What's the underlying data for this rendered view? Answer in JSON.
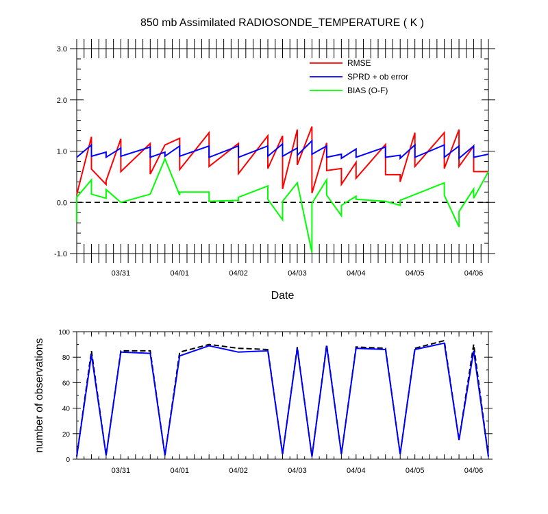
{
  "title": "850 mb Assimilated RADIOSONDE_TEMPERATURE ( K )",
  "chart_data": [
    {
      "type": "line",
      "xlabel": "Date",
      "ylabel": "",
      "xlim": [
        0,
        28
      ],
      "ylim": [
        -1.0,
        3.0
      ],
      "yticks": [
        {
          "v": -1.0,
          "label": "-1.0"
        },
        {
          "v": 0.0,
          "label": "0.0"
        },
        {
          "v": 1.0,
          "label": "1.0"
        },
        {
          "v": 2.0,
          "label": "2.0"
        },
        {
          "v": 3.0,
          "label": "3.0"
        }
      ],
      "date_ticks": [
        {
          "x": 3,
          "label": "03/31"
        },
        {
          "x": 7,
          "label": "04/01"
        },
        {
          "x": 11,
          "label": "04/02"
        },
        {
          "x": 15,
          "label": "04/03"
        },
        {
          "x": 19,
          "label": "04/04"
        },
        {
          "x": 23,
          "label": "04/05"
        },
        {
          "x": 27,
          "label": "04/06"
        }
      ],
      "zero_line": true,
      "legend": "top-right",
      "series": [
        {
          "name": "RMSE",
          "color": "#ff0000",
          "points": [
            [
              0,
              0.15
            ],
            [
              1,
              1.28
            ],
            [
              1,
              0.65
            ],
            [
              2,
              0.35
            ],
            [
              2,
              0.42
            ],
            [
              3,
              1.24
            ],
            [
              3,
              0.6
            ],
            [
              5,
              1.15
            ],
            [
              5,
              0.55
            ],
            [
              6,
              1.12
            ],
            [
              7,
              1.25
            ],
            [
              7,
              0.64
            ],
            [
              9,
              1.36
            ],
            [
              9,
              0.7
            ],
            [
              11,
              1.15
            ],
            [
              11,
              0.56
            ],
            [
              13,
              1.3
            ],
            [
              13,
              0.66
            ],
            [
              14,
              1.3
            ],
            [
              14,
              0.26
            ],
            [
              15,
              1.42
            ],
            [
              15,
              0.73
            ],
            [
              16,
              1.48
            ],
            [
              16,
              0.18
            ],
            [
              17,
              1.16
            ],
            [
              17,
              0.62
            ],
            [
              18,
              0.66
            ],
            [
              18,
              0.35
            ],
            [
              19,
              0.78
            ],
            [
              19,
              0.47
            ],
            [
              21,
              1.13
            ],
            [
              21,
              0.54
            ],
            [
              22,
              0.54
            ],
            [
              22,
              0.4
            ],
            [
              23,
              1.36
            ],
            [
              23,
              0.7
            ],
            [
              25,
              1.36
            ],
            [
              25,
              0.66
            ],
            [
              26,
              1.42
            ],
            [
              26,
              0.7
            ],
            [
              27,
              1.1
            ],
            [
              27,
              0.6
            ],
            [
              28,
              0.6
            ]
          ]
        },
        {
          "name": "SPRD + ob error",
          "color": "#0000ff",
          "points": [
            [
              0,
              0.88
            ],
            [
              1,
              1.12
            ],
            [
              1,
              0.9
            ],
            [
              2,
              0.98
            ],
            [
              2,
              0.88
            ],
            [
              3,
              1.06
            ],
            [
              3,
              0.9
            ],
            [
              5,
              1.08
            ],
            [
              5,
              0.88
            ],
            [
              6,
              0.98
            ],
            [
              6,
              0.9
            ],
            [
              7,
              1.1
            ],
            [
              7,
              0.9
            ],
            [
              9,
              1.1
            ],
            [
              9,
              0.88
            ],
            [
              11,
              1.1
            ],
            [
              11,
              0.88
            ],
            [
              13,
              1.1
            ],
            [
              13,
              0.9
            ],
            [
              14,
              1.14
            ],
            [
              14,
              0.9
            ],
            [
              15,
              1.06
            ],
            [
              15,
              0.92
            ],
            [
              16,
              1.2
            ],
            [
              16,
              0.94
            ],
            [
              17,
              1.1
            ],
            [
              17,
              0.88
            ],
            [
              18,
              0.94
            ],
            [
              18,
              0.86
            ],
            [
              19,
              1.04
            ],
            [
              19,
              0.88
            ],
            [
              21,
              1.08
            ],
            [
              21,
              0.88
            ],
            [
              22,
              0.92
            ],
            [
              22,
              0.86
            ],
            [
              23,
              1.12
            ],
            [
              23,
              0.88
            ],
            [
              25,
              1.12
            ],
            [
              25,
              0.88
            ],
            [
              26,
              1.1
            ],
            [
              26,
              0.86
            ],
            [
              27,
              1.1
            ],
            [
              27,
              0.88
            ],
            [
              28,
              0.94
            ]
          ]
        },
        {
          "name": "BIAS (O-F)",
          "color": "#00ff00",
          "points": [
            [
              0,
              -0.38
            ],
            [
              0,
              0.1
            ],
            [
              1,
              0.44
            ],
            [
              1,
              0.16
            ],
            [
              2,
              0.08
            ],
            [
              2,
              0.25
            ],
            [
              3,
              0.0
            ],
            [
              5,
              0.16
            ],
            [
              6,
              0.85
            ],
            [
              7,
              0.14
            ],
            [
              7,
              0.2
            ],
            [
              9,
              0.2
            ],
            [
              9,
              0.02
            ],
            [
              11,
              0.04
            ],
            [
              11,
              0.1
            ],
            [
              13,
              0.32
            ],
            [
              13,
              0.06
            ],
            [
              14,
              -0.34
            ],
            [
              14,
              0.02
            ],
            [
              15,
              0.38
            ],
            [
              16,
              -0.98
            ],
            [
              16,
              -0.02
            ],
            [
              17,
              0.44
            ],
            [
              17,
              0.14
            ],
            [
              18,
              -0.26
            ],
            [
              18,
              -0.06
            ],
            [
              19,
              0.12
            ],
            [
              19,
              0.06
            ],
            [
              21,
              0.02
            ],
            [
              22,
              -0.06
            ],
            [
              22,
              0.04
            ],
            [
              25,
              0.38
            ],
            [
              25,
              0.14
            ],
            [
              26,
              -0.48
            ],
            [
              26,
              -0.18
            ],
            [
              27,
              0.26
            ],
            [
              27,
              0.08
            ],
            [
              28,
              0.6
            ]
          ]
        }
      ]
    },
    {
      "type": "line",
      "xlabel": "",
      "ylabel": "number of observations",
      "xlim": [
        0,
        28
      ],
      "ylim": [
        0,
        100
      ],
      "yticks": [
        {
          "v": 0,
          "label": "0"
        },
        {
          "v": 20,
          "label": "20"
        },
        {
          "v": 40,
          "label": "40"
        },
        {
          "v": 60,
          "label": "60"
        },
        {
          "v": 80,
          "label": "80"
        },
        {
          "v": 100,
          "label": "100"
        }
      ],
      "date_ticks": [
        {
          "x": 3,
          "label": "03/31"
        },
        {
          "x": 7,
          "label": "04/01"
        },
        {
          "x": 11,
          "label": "04/02"
        },
        {
          "x": 15,
          "label": "04/03"
        },
        {
          "x": 19,
          "label": "04/04"
        },
        {
          "x": 23,
          "label": "04/05"
        },
        {
          "x": 27,
          "label": "04/06"
        }
      ],
      "series": [
        {
          "color": "#000000",
          "dashed": true,
          "points": [
            [
              0,
              2
            ],
            [
              1,
              85
            ],
            [
              2,
              3
            ],
            [
              3,
              85
            ],
            [
              5,
              85
            ],
            [
              6,
              3
            ],
            [
              7,
              84
            ],
            [
              9,
              90
            ],
            [
              11,
              87
            ],
            [
              13,
              86
            ],
            [
              14,
              4
            ],
            [
              15,
              88
            ],
            [
              16,
              2
            ],
            [
              17,
              90
            ],
            [
              18,
              4
            ],
            [
              19,
              88
            ],
            [
              21,
              87
            ],
            [
              22,
              4
            ],
            [
              23,
              87
            ],
            [
              25,
              93
            ],
            [
              26,
              15
            ],
            [
              27,
              90
            ],
            [
              28,
              2
            ]
          ]
        },
        {
          "color": "#0000ff",
          "dashed": false,
          "points": [
            [
              0,
              2
            ],
            [
              1,
              82
            ],
            [
              2,
              3
            ],
            [
              3,
              84
            ],
            [
              5,
              83
            ],
            [
              6,
              3
            ],
            [
              7,
              81
            ],
            [
              9,
              89
            ],
            [
              11,
              84
            ],
            [
              13,
              85
            ],
            [
              14,
              4
            ],
            [
              15,
              87
            ],
            [
              16,
              2
            ],
            [
              17,
              89
            ],
            [
              18,
              4
            ],
            [
              19,
              87
            ],
            [
              21,
              86
            ],
            [
              22,
              4
            ],
            [
              23,
              86
            ],
            [
              25,
              91
            ],
            [
              26,
              15
            ],
            [
              27,
              85
            ],
            [
              28,
              2
            ]
          ]
        }
      ]
    }
  ]
}
